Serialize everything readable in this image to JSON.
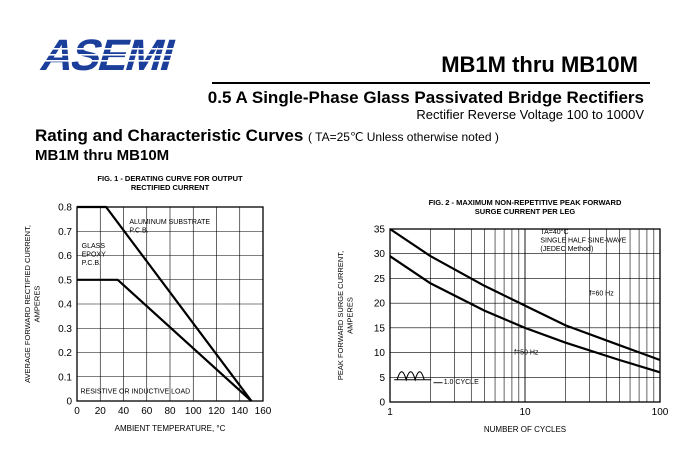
{
  "header": {
    "logo_text": "ASEMI",
    "part_range": "MB1M thru MB10M",
    "headline": "0.5  A Single-Phase Glass Passivated Bridge Rectifiers",
    "subline": "Rectifier Reverse Voltage 100 to 1000V",
    "rating_title": "Rating and Characteristic Curves",
    "rating_note": "( TA=25℃ Unless otherwise noted )",
    "subhead": "MB1M thru MB10M"
  },
  "chart_data": [
    {
      "type": "line",
      "title_lines": [
        "FIG. 1 - DERATING CURVE FOR OUTPUT",
        "RECTIFIED CURRENT"
      ],
      "xlabel": "AMBIENT TEMPERATURE, °C",
      "ylabel_lines": [
        "AVERAGE FORWARD RECTIFIED CURRENT,",
        "AMPERES"
      ],
      "xlim": [
        0,
        160
      ],
      "ylim": [
        0,
        0.8
      ],
      "xticks": [
        0,
        20,
        40,
        60,
        80,
        100,
        120,
        140,
        160
      ],
      "yticks": [
        0,
        0.1,
        0.2,
        0.3,
        0.4,
        0.5,
        0.6,
        0.7,
        0.8
      ],
      "xtick_labels": [
        "0",
        "20",
        "40",
        "60",
        "80",
        "100",
        "120",
        "140",
        "160"
      ],
      "ytick_labels": [
        "0",
        "0.1",
        "0.2",
        "0.3",
        "0.4",
        "0.5",
        "0.6",
        "0.7",
        "0.8"
      ],
      "grid": true,
      "series": [
        {
          "name": "ALUMINUM SUBSTRATE P.C.B.",
          "x": [
            0,
            25,
            150
          ],
          "y": [
            0.8,
            0.8,
            0
          ]
        },
        {
          "name": "GLASS EPOXY P.C.B.",
          "x": [
            0,
            35,
            150
          ],
          "y": [
            0.5,
            0.5,
            0
          ]
        }
      ],
      "annotations": [
        {
          "lines": [
            "ALUMINUM SUBSTRATE",
            "P.C.B."
          ],
          "x": 45,
          "y": 0.73
        },
        {
          "lines": [
            "GLASS",
            "EPOXY",
            "P.C.B."
          ],
          "x": 4,
          "y": 0.63
        },
        {
          "lines": [
            "RESISTIVE OR INDUCTIVE LOAD"
          ],
          "x": 3,
          "y": 0.03
        }
      ]
    },
    {
      "type": "line",
      "xscale": "log",
      "title_lines": [
        "FIG. 2 - MAXIMUM NON-REPETITIVE PEAK FORWARD",
        "SURGE CURRENT PER LEG"
      ],
      "xlabel": "NUMBER OF CYCLES",
      "ylabel_lines": [
        "PEAK FORWARD SURGE CURRENT,",
        "AMPERES"
      ],
      "xlim": [
        1,
        100
      ],
      "ylim": [
        0,
        35
      ],
      "xticks": [
        1,
        10,
        100
      ],
      "yticks": [
        0,
        5,
        10,
        15,
        20,
        25,
        30,
        35
      ],
      "xtick_labels": [
        "1",
        "10",
        "100"
      ],
      "ytick_labels": [
        "0",
        "5",
        "10",
        "15",
        "20",
        "25",
        "30",
        "35"
      ],
      "grid": true,
      "series": [
        {
          "name": "f=60 Hz",
          "x": [
            1,
            2,
            5,
            10,
            20,
            50,
            100
          ],
          "y": [
            35,
            29.5,
            23.5,
            19.5,
            15.5,
            11.5,
            8.5
          ]
        },
        {
          "name": "f=50 Hz",
          "x": [
            1,
            2,
            5,
            10,
            20,
            50,
            100
          ],
          "y": [
            29.5,
            24,
            18.5,
            15,
            12,
            8.5,
            6
          ]
        }
      ],
      "annotations": [
        {
          "lines": [
            "TA=40°C",
            "SINGLE HALF SINE-WAVE",
            "(JEDEC Method)"
          ],
          "x": 13,
          "y": 34
        },
        {
          "lines": [
            "f=60 Hz"
          ],
          "x": 30,
          "y": 21.5
        },
        {
          "lines": [
            "f=50 Hz"
          ],
          "x": 8.3,
          "y": 9.6
        },
        {
          "lines": [
            "1.0 CYCLE"
          ],
          "x": 2.5,
          "y": 3.6
        }
      ]
    }
  ]
}
